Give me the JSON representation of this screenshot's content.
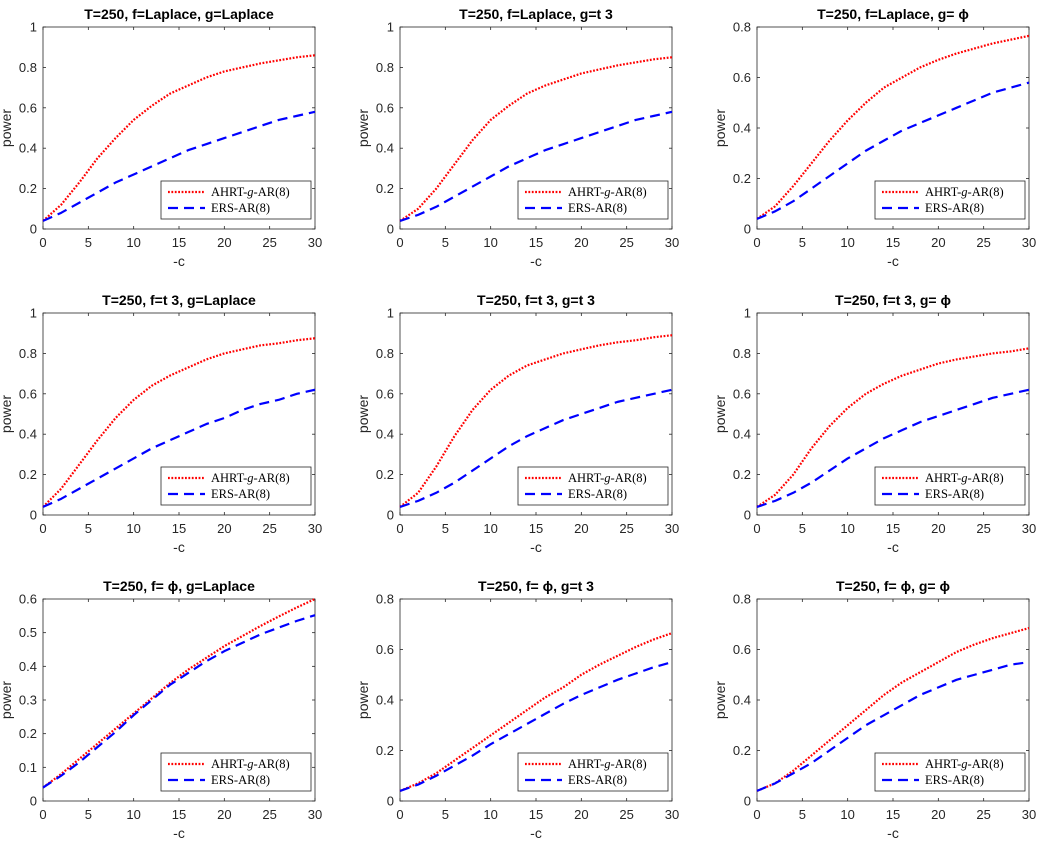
{
  "colors": {
    "ahrt": "#ff0000",
    "ers": "#0000ff",
    "axis": "#262626"
  },
  "legend": {
    "ahrt_prefix": "AHRT-",
    "ahrt_g": "g",
    "ahrt_suffix": "-AR(8)",
    "ers": "ERS-AR(8)"
  },
  "chart_data": [
    {
      "type": "line",
      "title": "T=250, f=Laplace, g=Laplace",
      "xlabel": "-c",
      "ylabel": "power",
      "xlim": [
        0,
        30
      ],
      "ylim": [
        0,
        1
      ],
      "xticks": [
        0,
        5,
        10,
        15,
        20,
        25,
        30
      ],
      "yticks": [
        0,
        0.2,
        0.4,
        0.6,
        0.8,
        1
      ],
      "ytick_labels": [
        "0",
        "0.2",
        "0.4",
        "0.6",
        "0.8",
        "1"
      ],
      "x": [
        0,
        2,
        4,
        6,
        8,
        10,
        12,
        14,
        16,
        18,
        20,
        22,
        24,
        26,
        28,
        30
      ],
      "series": [
        {
          "name": "AHRT-g-AR(8)",
          "values": [
            0.04,
            0.12,
            0.23,
            0.35,
            0.45,
            0.54,
            0.61,
            0.67,
            0.71,
            0.75,
            0.78,
            0.8,
            0.82,
            0.835,
            0.85,
            0.86
          ]
        },
        {
          "name": "ERS-AR(8)",
          "values": [
            0.04,
            0.08,
            0.13,
            0.18,
            0.23,
            0.27,
            0.31,
            0.35,
            0.39,
            0.42,
            0.45,
            0.48,
            0.51,
            0.54,
            0.56,
            0.58
          ]
        }
      ]
    },
    {
      "type": "line",
      "title": "T=250, f=Laplace, g=t 3",
      "xlabel": "-c",
      "ylabel": "power",
      "xlim": [
        0,
        30
      ],
      "ylim": [
        0,
        1
      ],
      "xticks": [
        0,
        5,
        10,
        15,
        20,
        25,
        30
      ],
      "yticks": [
        0,
        0.2,
        0.4,
        0.6,
        0.8,
        1
      ],
      "ytick_labels": [
        "0",
        "0.2",
        "0.4",
        "0.6",
        "0.8",
        "1"
      ],
      "x": [
        0,
        2,
        4,
        6,
        8,
        10,
        12,
        14,
        16,
        18,
        20,
        22,
        24,
        26,
        28,
        30
      ],
      "series": [
        {
          "name": "AHRT-g-AR(8)",
          "values": [
            0.04,
            0.1,
            0.2,
            0.32,
            0.44,
            0.54,
            0.61,
            0.67,
            0.71,
            0.74,
            0.77,
            0.79,
            0.81,
            0.825,
            0.84,
            0.85
          ]
        },
        {
          "name": "ERS-AR(8)",
          "values": [
            0.04,
            0.07,
            0.11,
            0.16,
            0.21,
            0.26,
            0.31,
            0.35,
            0.39,
            0.42,
            0.45,
            0.48,
            0.51,
            0.54,
            0.56,
            0.58
          ]
        }
      ]
    },
    {
      "type": "line",
      "title": "T=250, f=Laplace, g= ϕ",
      "xlabel": "-c",
      "ylabel": "power",
      "xlim": [
        0,
        30
      ],
      "ylim": [
        0,
        0.8
      ],
      "xticks": [
        0,
        5,
        10,
        15,
        20,
        25,
        30
      ],
      "yticks": [
        0,
        0.2,
        0.4,
        0.6,
        0.8
      ],
      "ytick_labels": [
        "0",
        "0.2",
        "0.4",
        "0.6",
        "0.8"
      ],
      "x": [
        0,
        2,
        4,
        6,
        8,
        10,
        12,
        14,
        16,
        18,
        20,
        22,
        24,
        26,
        28,
        30
      ],
      "series": [
        {
          "name": "AHRT-g-AR(8)",
          "values": [
            0.04,
            0.09,
            0.17,
            0.26,
            0.35,
            0.43,
            0.5,
            0.56,
            0.6,
            0.64,
            0.67,
            0.695,
            0.715,
            0.735,
            0.75,
            0.765
          ]
        },
        {
          "name": "ERS-AR(8)",
          "values": [
            0.04,
            0.07,
            0.11,
            0.16,
            0.21,
            0.26,
            0.31,
            0.35,
            0.39,
            0.42,
            0.45,
            0.48,
            0.51,
            0.54,
            0.56,
            0.58
          ]
        }
      ]
    },
    {
      "type": "line",
      "title": "T=250, f=t 3, g=Laplace",
      "xlabel": "-c",
      "ylabel": "power",
      "xlim": [
        0,
        30
      ],
      "ylim": [
        0,
        1
      ],
      "xticks": [
        0,
        5,
        10,
        15,
        20,
        25,
        30
      ],
      "yticks": [
        0,
        0.2,
        0.4,
        0.6,
        0.8,
        1
      ],
      "ytick_labels": [
        "0",
        "0.2",
        "0.4",
        "0.6",
        "0.8",
        "1"
      ],
      "x": [
        0,
        2,
        4,
        6,
        8,
        10,
        12,
        14,
        16,
        18,
        20,
        22,
        24,
        26,
        28,
        30
      ],
      "series": [
        {
          "name": "AHRT-g-AR(8)",
          "values": [
            0.04,
            0.13,
            0.25,
            0.37,
            0.48,
            0.57,
            0.64,
            0.69,
            0.73,
            0.77,
            0.8,
            0.82,
            0.84,
            0.85,
            0.865,
            0.875
          ]
        },
        {
          "name": "ERS-AR(8)",
          "values": [
            0.04,
            0.08,
            0.13,
            0.18,
            0.23,
            0.28,
            0.33,
            0.37,
            0.41,
            0.45,
            0.48,
            0.52,
            0.55,
            0.57,
            0.6,
            0.62
          ]
        }
      ]
    },
    {
      "type": "line",
      "title": "T=250, f=t 3, g=t 3",
      "xlabel": "-c",
      "ylabel": "power",
      "xlim": [
        0,
        30
      ],
      "ylim": [
        0,
        1
      ],
      "xticks": [
        0,
        5,
        10,
        15,
        20,
        25,
        30
      ],
      "yticks": [
        0,
        0.2,
        0.4,
        0.6,
        0.8,
        1
      ],
      "ytick_labels": [
        "0",
        "0.2",
        "0.4",
        "0.6",
        "0.8",
        "1"
      ],
      "x": [
        0,
        2,
        4,
        6,
        8,
        10,
        12,
        14,
        16,
        18,
        20,
        22,
        24,
        26,
        28,
        30
      ],
      "series": [
        {
          "name": "AHRT-g-AR(8)",
          "values": [
            0.04,
            0.11,
            0.24,
            0.39,
            0.52,
            0.62,
            0.69,
            0.74,
            0.77,
            0.8,
            0.82,
            0.84,
            0.855,
            0.865,
            0.88,
            0.89
          ]
        },
        {
          "name": "ERS-AR(8)",
          "values": [
            0.04,
            0.07,
            0.11,
            0.16,
            0.22,
            0.28,
            0.34,
            0.39,
            0.43,
            0.47,
            0.5,
            0.53,
            0.56,
            0.58,
            0.6,
            0.62
          ]
        }
      ]
    },
    {
      "type": "line",
      "title": "T=250, f=t 3, g= ϕ",
      "xlabel": "-c",
      "ylabel": "power",
      "xlim": [
        0,
        30
      ],
      "ylim": [
        0,
        1
      ],
      "xticks": [
        0,
        5,
        10,
        15,
        20,
        25,
        30
      ],
      "yticks": [
        0,
        0.2,
        0.4,
        0.6,
        0.8,
        1
      ],
      "ytick_labels": [
        "0",
        "0.2",
        "0.4",
        "0.6",
        "0.8",
        "1"
      ],
      "x": [
        0,
        2,
        4,
        6,
        8,
        10,
        12,
        14,
        16,
        18,
        20,
        22,
        24,
        26,
        28,
        30
      ],
      "series": [
        {
          "name": "AHRT-g-AR(8)",
          "values": [
            0.04,
            0.1,
            0.2,
            0.33,
            0.44,
            0.53,
            0.6,
            0.65,
            0.69,
            0.72,
            0.75,
            0.77,
            0.785,
            0.8,
            0.81,
            0.825
          ]
        },
        {
          "name": "ERS-AR(8)",
          "values": [
            0.04,
            0.07,
            0.11,
            0.16,
            0.22,
            0.28,
            0.33,
            0.38,
            0.42,
            0.46,
            0.49,
            0.52,
            0.55,
            0.58,
            0.6,
            0.62
          ]
        }
      ]
    },
    {
      "type": "line",
      "title": "T=250, f= ϕ, g=Laplace",
      "xlabel": "-c",
      "ylabel": "power",
      "xlim": [
        0,
        30
      ],
      "ylim": [
        0,
        0.6
      ],
      "xticks": [
        0,
        5,
        10,
        15,
        20,
        25,
        30
      ],
      "yticks": [
        0,
        0.1,
        0.2,
        0.3,
        0.4,
        0.5,
        0.6
      ],
      "ytick_labels": [
        "0",
        "0.1",
        "0.2",
        "0.3",
        "0.4",
        "0.5",
        "0.6"
      ],
      "x": [
        0,
        2,
        4,
        6,
        8,
        10,
        12,
        14,
        16,
        18,
        20,
        22,
        24,
        26,
        28,
        30
      ],
      "series": [
        {
          "name": "AHRT-g-AR(8)",
          "values": [
            0.04,
            0.08,
            0.125,
            0.17,
            0.215,
            0.26,
            0.305,
            0.35,
            0.39,
            0.425,
            0.46,
            0.49,
            0.52,
            0.548,
            0.575,
            0.6
          ]
        },
        {
          "name": "ERS-AR(8)",
          "values": [
            0.04,
            0.075,
            0.115,
            0.16,
            0.205,
            0.255,
            0.3,
            0.345,
            0.38,
            0.415,
            0.445,
            0.47,
            0.495,
            0.515,
            0.535,
            0.552
          ]
        }
      ]
    },
    {
      "type": "line",
      "title": "T=250, f= ϕ, g=t 3",
      "xlabel": "-c",
      "ylabel": "power",
      "xlim": [
        0,
        30
      ],
      "ylim": [
        0,
        0.8
      ],
      "xticks": [
        0,
        5,
        10,
        15,
        20,
        25,
        30
      ],
      "yticks": [
        0,
        0.2,
        0.4,
        0.6,
        0.8
      ],
      "ytick_labels": [
        "0",
        "0.2",
        "0.4",
        "0.6",
        "0.8"
      ],
      "x": [
        0,
        2,
        4,
        6,
        8,
        10,
        12,
        14,
        16,
        18,
        20,
        22,
        24,
        26,
        28,
        30
      ],
      "series": [
        {
          "name": "AHRT-g-AR(8)",
          "values": [
            0.04,
            0.07,
            0.11,
            0.16,
            0.21,
            0.26,
            0.31,
            0.36,
            0.41,
            0.45,
            0.5,
            0.54,
            0.575,
            0.61,
            0.64,
            0.665
          ]
        },
        {
          "name": "ERS-AR(8)",
          "values": [
            0.04,
            0.065,
            0.1,
            0.14,
            0.18,
            0.225,
            0.265,
            0.305,
            0.345,
            0.385,
            0.42,
            0.45,
            0.48,
            0.505,
            0.53,
            0.55
          ]
        }
      ]
    },
    {
      "type": "line",
      "title": "T=250, f= ϕ, g= ϕ",
      "xlabel": "-c",
      "ylabel": "power",
      "xlim": [
        0,
        30
      ],
      "ylim": [
        0,
        0.8
      ],
      "xticks": [
        0,
        5,
        10,
        15,
        20,
        25,
        30
      ],
      "yticks": [
        0,
        0.2,
        0.4,
        0.6,
        0.8
      ],
      "ytick_labels": [
        "0",
        "0.2",
        "0.4",
        "0.6",
        "0.8"
      ],
      "x": [
        0,
        2,
        4,
        6,
        8,
        10,
        12,
        14,
        16,
        18,
        20,
        22,
        24,
        26,
        28,
        30
      ],
      "series": [
        {
          "name": "AHRT-g-AR(8)",
          "values": [
            0.04,
            0.07,
            0.12,
            0.18,
            0.24,
            0.3,
            0.36,
            0.42,
            0.47,
            0.51,
            0.55,
            0.59,
            0.62,
            0.645,
            0.665,
            0.685
          ]
        },
        {
          "name": "ERS-AR(8)",
          "values": [
            0.04,
            0.07,
            0.11,
            0.15,
            0.2,
            0.25,
            0.3,
            0.34,
            0.38,
            0.42,
            0.45,
            0.48,
            0.5,
            0.52,
            0.54,
            0.55
          ]
        }
      ]
    }
  ]
}
